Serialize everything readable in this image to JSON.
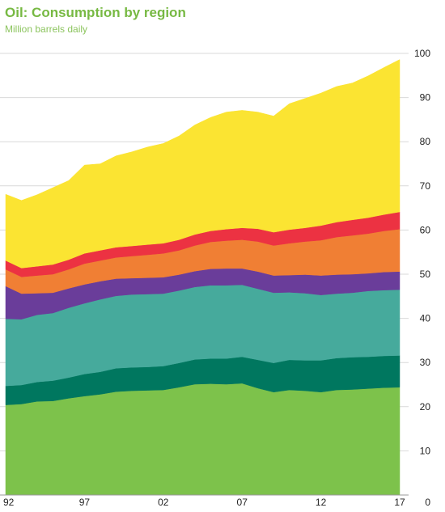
{
  "chart_data": {
    "type": "area",
    "stacked": true,
    "title": "Oil: Consumption by region",
    "subtitle": "Million barrels daily",
    "xlabel": "",
    "ylabel": "",
    "x": [
      1992,
      1993,
      1994,
      1995,
      1996,
      1997,
      1998,
      1999,
      2000,
      2001,
      2002,
      2003,
      2004,
      2005,
      2006,
      2007,
      2008,
      2009,
      2010,
      2011,
      2012,
      2013,
      2014,
      2015,
      2016,
      2017
    ],
    "x_tick_labels": [
      {
        "year": 1992,
        "label": "92"
      },
      {
        "year": 1997,
        "label": "97"
      },
      {
        "year": 2002,
        "label": "02"
      },
      {
        "year": 2007,
        "label": "07"
      },
      {
        "year": 2012,
        "label": "12"
      },
      {
        "year": 2017,
        "label": "17"
      }
    ],
    "ylim": [
      0,
      100
    ],
    "y_ticks": [
      0,
      10,
      20,
      30,
      40,
      50,
      60,
      70,
      80,
      90,
      100
    ],
    "y_axis_position": "right",
    "grid": true,
    "series": [
      {
        "color": "#7dc24b",
        "values": [
          20.4,
          20.6,
          21.2,
          21.3,
          21.9,
          22.4,
          22.8,
          23.4,
          23.6,
          23.7,
          23.8,
          24.4,
          25.1,
          25.2,
          25.1,
          25.3,
          24.2,
          23.3,
          23.8,
          23.6,
          23.3,
          23.8,
          23.9,
          24.1,
          24.3,
          24.4
        ]
      },
      {
        "color": "#00775f",
        "values": [
          4.3,
          4.3,
          4.4,
          4.6,
          4.7,
          5.0,
          5.1,
          5.3,
          5.3,
          5.3,
          5.4,
          5.5,
          5.6,
          5.7,
          5.8,
          6.0,
          6.4,
          6.6,
          6.8,
          6.9,
          7.2,
          7.2,
          7.3,
          7.2,
          7.2,
          7.2
        ]
      },
      {
        "color": "#46aa9c",
        "values": [
          15.2,
          14.9,
          15.2,
          15.3,
          15.8,
          16.0,
          16.4,
          16.4,
          16.5,
          16.5,
          16.4,
          16.4,
          16.4,
          16.6,
          16.6,
          16.3,
          16.1,
          15.9,
          15.3,
          15.2,
          14.8,
          14.6,
          14.6,
          14.9,
          14.9,
          14.9
        ]
      },
      {
        "color": "#6a3d9a",
        "values": [
          7.4,
          5.8,
          4.9,
          4.6,
          4.4,
          4.3,
          4.1,
          3.9,
          3.7,
          3.7,
          3.7,
          3.6,
          3.6,
          3.7,
          3.8,
          3.7,
          3.9,
          3.9,
          3.9,
          4.2,
          4.4,
          4.3,
          4.2,
          4.0,
          4.1,
          4.1
        ]
      },
      {
        "color": "#f07f34",
        "values": [
          3.8,
          3.8,
          4.0,
          4.2,
          4.3,
          4.7,
          4.7,
          4.8,
          5.0,
          5.2,
          5.4,
          5.5,
          5.8,
          6.1,
          6.3,
          6.5,
          6.8,
          6.8,
          7.2,
          7.5,
          8.0,
          8.5,
          8.8,
          9.0,
          9.3,
          9.6
        ]
      },
      {
        "color": "#ec3242",
        "values": [
          2.0,
          2.0,
          2.1,
          2.2,
          2.2,
          2.3,
          2.3,
          2.3,
          2.3,
          2.3,
          2.3,
          2.4,
          2.5,
          2.5,
          2.6,
          2.7,
          2.9,
          3.0,
          3.1,
          3.1,
          3.3,
          3.4,
          3.5,
          3.6,
          3.7,
          3.9
        ]
      },
      {
        "color": "#fbe432",
        "values": [
          15.0,
          15.3,
          16.2,
          17.4,
          17.9,
          20.0,
          19.6,
          20.7,
          21.3,
          22.1,
          22.6,
          23.5,
          24.8,
          25.7,
          26.5,
          26.6,
          26.4,
          26.3,
          28.5,
          29.3,
          30.0,
          30.7,
          31.0,
          32.1,
          33.3,
          34.5
        ]
      }
    ]
  }
}
